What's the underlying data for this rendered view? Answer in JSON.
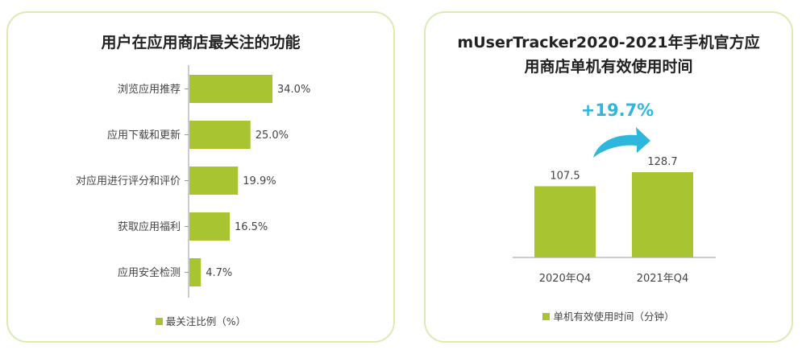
{
  "colors": {
    "bar": "#a8c531",
    "panel_border": "#dceab4",
    "highlight": "#2eb7dd"
  },
  "chart_data": [
    {
      "type": "bar",
      "orientation": "horizontal",
      "title": "用户在应用商店最关注的功能",
      "categories": [
        "浏览应用推荐",
        "应用下载和更新",
        "对应用进行评分和评价",
        "获取应用福利",
        "应用安全检测"
      ],
      "values": [
        34.0,
        25.0,
        19.9,
        16.5,
        4.7
      ],
      "value_labels": [
        "34.0%",
        "25.0%",
        "19.9%",
        "16.5%",
        "4.7%"
      ],
      "legend": "最关注比例（%）",
      "xlim": [
        0,
        34.0
      ],
      "grid": false
    },
    {
      "type": "bar",
      "title_lines": [
        "mUserTracker2020-2021年手机官方应",
        "用商店单机有效使用时间"
      ],
      "categories": [
        "2020年Q4",
        "2021年Q4"
      ],
      "values": [
        107.5,
        128.7
      ],
      "value_labels": [
        "107.5",
        "128.7"
      ],
      "annotation": "+19.7%",
      "legend": "单机有效使用时间（分钟）",
      "ylim": [
        0,
        128.7
      ],
      "grid": false
    }
  ]
}
